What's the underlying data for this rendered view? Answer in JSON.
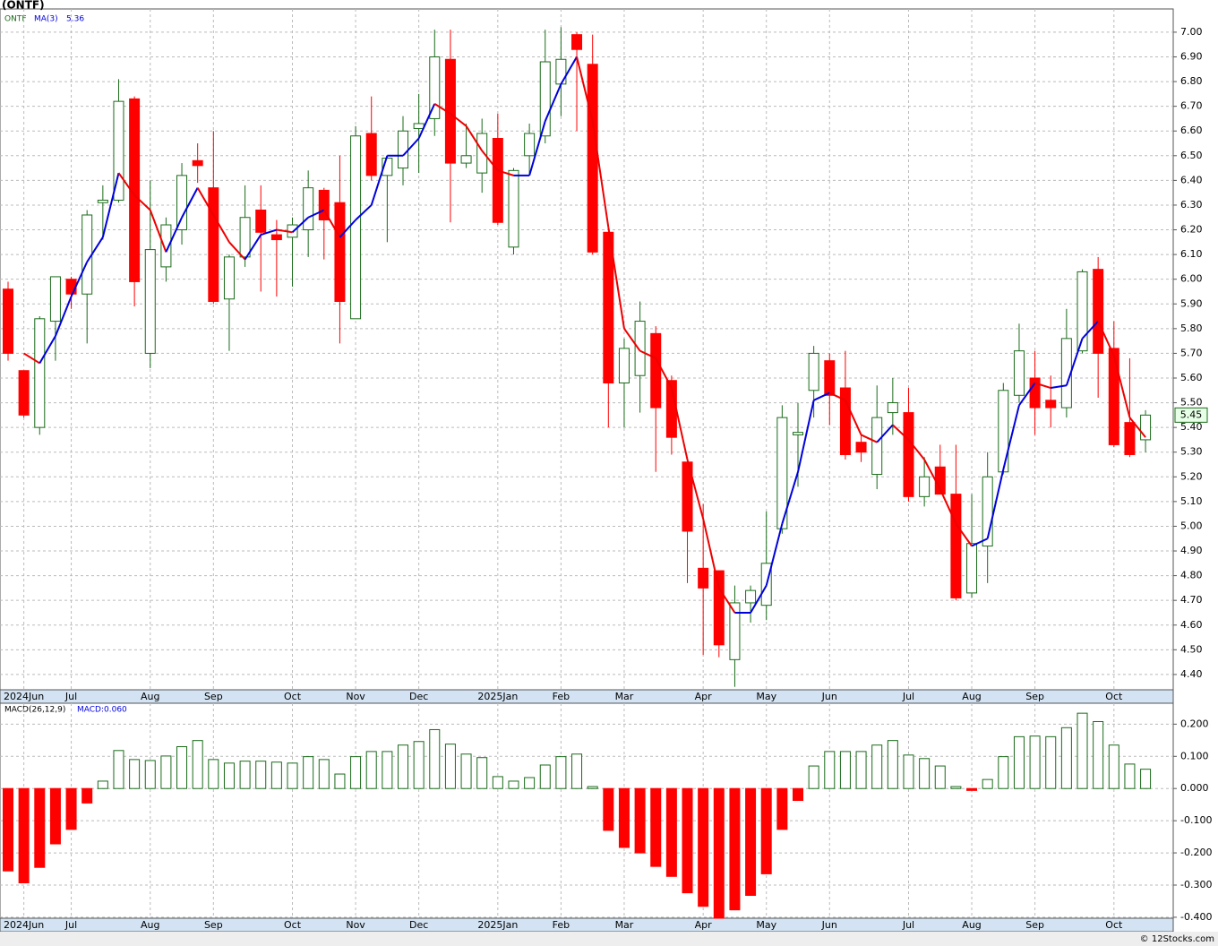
{
  "chart_data": [
    {
      "type": "candlestick",
      "title": "(ONTF)",
      "name": "ONTF",
      "up_color": "#1a6b1a",
      "down_color": "#ff0000",
      "grid": true,
      "categories": [
        null,
        "2024Jun",
        null,
        null,
        "Jul",
        null,
        null,
        null,
        null,
        "Aug",
        null,
        null,
        null,
        "Sep",
        null,
        null,
        null,
        null,
        "Oct",
        null,
        null,
        null,
        "Nov",
        null,
        null,
        null,
        "Dec",
        null,
        null,
        null,
        null,
        "2025Jan",
        null,
        null,
        null,
        "Feb",
        null,
        null,
        null,
        "Mar",
        null,
        null,
        null,
        null,
        "Apr",
        null,
        null,
        null,
        "May",
        null,
        null,
        null,
        "Jun",
        null,
        null,
        null,
        null,
        "Jul",
        null,
        null,
        null,
        "Aug",
        null,
        null,
        null,
        "Sep",
        null,
        null,
        null,
        null,
        "Oct",
        null,
        null
      ],
      "open": [
        5.96,
        5.63,
        5.4,
        5.83,
        6.0,
        5.94,
        6.31,
        6.32,
        6.73,
        5.7,
        6.05,
        6.2,
        6.48,
        6.37,
        5.92,
        6.09,
        6.28,
        6.18,
        6.17,
        6.2,
        6.36,
        6.31,
        5.84,
        6.59,
        6.42,
        6.45,
        6.61,
        6.65,
        6.89,
        6.47,
        6.43,
        6.57,
        6.13,
        6.5,
        6.58,
        6.79,
        6.99,
        6.87,
        6.19,
        5.58,
        5.61,
        5.78,
        5.59,
        5.26,
        4.83,
        4.82,
        4.46,
        4.69,
        4.68,
        4.99,
        5.37,
        5.55,
        5.67,
        5.56,
        5.34,
        5.21,
        5.46,
        5.46,
        5.12,
        5.24,
        5.13,
        4.73,
        4.92,
        5.22,
        5.53,
        5.6,
        5.51,
        5.48,
        5.71,
        6.04,
        5.72,
        5.42,
        5.35
      ],
      "high": [
        5.99,
        5.63,
        5.85,
        6.01,
        6.01,
        6.28,
        6.38,
        6.81,
        6.74,
        6.4,
        6.25,
        6.47,
        6.55,
        6.6,
        6.1,
        6.38,
        6.38,
        6.24,
        6.25,
        6.44,
        6.37,
        6.5,
        6.62,
        6.74,
        6.5,
        6.66,
        6.75,
        7.01,
        7.01,
        6.63,
        6.65,
        6.67,
        6.45,
        6.63,
        7.01,
        7.02,
        7.0,
        6.99,
        6.19,
        5.76,
        5.91,
        5.81,
        5.61,
        5.28,
        5.09,
        4.82,
        4.76,
        4.76,
        5.06,
        5.49,
        5.5,
        5.73,
        5.7,
        5.71,
        5.37,
        5.57,
        5.6,
        5.56,
        5.28,
        5.33,
        5.33,
        5.13,
        5.3,
        5.58,
        5.82,
        5.71,
        5.61,
        5.88,
        6.04,
        6.09,
        5.83,
        5.68,
        5.47
      ],
      "low": [
        5.67,
        5.44,
        5.37,
        5.67,
        5.88,
        5.74,
        6.16,
        6.31,
        5.89,
        5.64,
        5.99,
        6.14,
        6.39,
        5.9,
        5.71,
        6.05,
        5.95,
        5.93,
        5.97,
        6.09,
        6.08,
        5.74,
        5.84,
        6.4,
        6.15,
        6.38,
        6.43,
        6.58,
        6.23,
        6.45,
        6.35,
        6.22,
        6.1,
        6.42,
        6.55,
        6.66,
        6.6,
        6.1,
        5.4,
        5.4,
        5.46,
        5.22,
        5.29,
        4.77,
        4.48,
        4.47,
        4.35,
        4.61,
        4.62,
        4.97,
        5.16,
        5.44,
        5.41,
        5.27,
        5.26,
        5.15,
        5.37,
        5.1,
        5.08,
        5.13,
        4.7,
        4.71,
        4.77,
        5.21,
        5.5,
        5.37,
        5.4,
        5.44,
        5.7,
        5.52,
        5.32,
        5.28,
        5.3
      ],
      "close": [
        5.7,
        5.45,
        5.84,
        6.01,
        5.94,
        6.26,
        6.32,
        6.72,
        5.99,
        6.12,
        6.22,
        6.42,
        6.46,
        5.91,
        6.09,
        6.25,
        6.19,
        6.16,
        6.22,
        6.37,
        6.24,
        5.91,
        6.58,
        6.42,
        6.49,
        6.6,
        6.63,
        6.9,
        6.47,
        6.5,
        6.59,
        6.23,
        6.44,
        6.59,
        6.88,
        6.89,
        6.93,
        6.11,
        5.58,
        5.72,
        5.83,
        5.48,
        5.36,
        4.98,
        4.75,
        4.52,
        4.69,
        4.74,
        4.85,
        5.44,
        5.38,
        5.7,
        5.53,
        5.29,
        5.3,
        5.44,
        5.5,
        5.12,
        5.2,
        5.13,
        4.71,
        4.93,
        5.2,
        5.55,
        5.71,
        5.48,
        5.48,
        5.76,
        6.03,
        5.7,
        5.33,
        5.29,
        5.45
      ],
      "series": [
        {
          "name": "MA(3)",
          "color": "#0000dd",
          "down_color": "#ee0000",
          "values": [
            null,
            5.7,
            5.66,
            5.77,
            5.93,
            6.07,
            6.17,
            6.43,
            6.34,
            6.28,
            6.11,
            6.25,
            6.37,
            6.26,
            6.15,
            6.08,
            6.18,
            6.2,
            6.19,
            6.25,
            6.28,
            6.17,
            6.24,
            6.3,
            6.5,
            6.5,
            6.57,
            6.71,
            6.67,
            6.62,
            6.52,
            6.44,
            6.42,
            6.42,
            6.64,
            6.79,
            6.9,
            6.64,
            6.21,
            5.8,
            5.71,
            5.68,
            5.56,
            5.27,
            5.03,
            4.75,
            4.65,
            4.65,
            4.76,
            5.01,
            5.22,
            5.51,
            5.54,
            5.51,
            5.37,
            5.34,
            5.41,
            5.35,
            5.27,
            5.15,
            5.01,
            4.92,
            4.95,
            5.23,
            5.49,
            5.58,
            5.56,
            5.57,
            5.76,
            5.83,
            5.69,
            5.44,
            5.36
          ]
        }
      ],
      "ylim": [
        4.338,
        7.094
      ],
      "yticks": [
        {
          "value": 4.4,
          "label": "4.40"
        },
        {
          "value": 4.5,
          "label": "4.50"
        },
        {
          "value": 4.6,
          "label": "4.60"
        },
        {
          "value": 4.7,
          "label": "4.70"
        },
        {
          "value": 4.8,
          "label": "4.80"
        },
        {
          "value": 4.9,
          "label": "4.90"
        },
        {
          "value": 5.0,
          "label": "5.00"
        },
        {
          "value": 5.1,
          "label": "5.10"
        },
        {
          "value": 5.2,
          "label": "5.20"
        },
        {
          "value": 5.3,
          "label": "5.30"
        },
        {
          "value": 5.4,
          "label": "5.40"
        },
        {
          "value": 5.5,
          "label": "5.50"
        },
        {
          "value": 5.6,
          "label": "5.60"
        },
        {
          "value": 5.7,
          "label": "5.70"
        },
        {
          "value": 5.8,
          "label": "5.80"
        },
        {
          "value": 5.9,
          "label": "5.90"
        },
        {
          "value": 6.0,
          "label": "6.00"
        },
        {
          "value": 6.1,
          "label": "6.10"
        },
        {
          "value": 6.2,
          "label": "6.20"
        },
        {
          "value": 6.3,
          "label": "6.30"
        },
        {
          "value": 6.4,
          "label": "6.40"
        },
        {
          "value": 6.5,
          "label": "6.50"
        },
        {
          "value": 6.6,
          "label": "6.60"
        },
        {
          "value": 6.7,
          "label": "6.70"
        },
        {
          "value": 6.8,
          "label": "6.80"
        },
        {
          "value": 6.9,
          "label": "6.90"
        },
        {
          "value": 7.0,
          "label": "7.00"
        }
      ]
    },
    {
      "type": "bar",
      "title": "MACD(26,12,9)",
      "readout": "MACD:0.060",
      "up_color": "#1a6b1a",
      "down_color": "#ff0000",
      "grid": true,
      "values": [
        -0.256,
        -0.293,
        -0.245,
        -0.172,
        -0.127,
        -0.045,
        0.023,
        0.118,
        0.09,
        0.087,
        0.101,
        0.13,
        0.149,
        0.09,
        0.079,
        0.085,
        0.085,
        0.082,
        0.079,
        0.099,
        0.09,
        0.045,
        0.099,
        0.115,
        0.115,
        0.135,
        0.146,
        0.183,
        0.138,
        0.107,
        0.096,
        0.037,
        0.023,
        0.034,
        0.073,
        0.099,
        0.107,
        0.006,
        -0.13,
        -0.183,
        -0.2,
        -0.242,
        -0.273,
        -0.324,
        -0.366,
        -0.403,
        -0.377,
        -0.332,
        -0.265,
        -0.127,
        -0.037,
        0.07,
        0.115,
        0.115,
        0.115,
        0.135,
        0.149,
        0.104,
        0.093,
        0.07,
        0.006,
        -0.006,
        0.028,
        0.099,
        0.161,
        0.163,
        0.161,
        0.189,
        0.234,
        0.208,
        0.135,
        0.076,
        0.06
      ],
      "ylim": [
        -0.403,
        0.265
      ],
      "yticks": [
        {
          "value": -0.4,
          "label": "-0.400"
        },
        {
          "value": -0.3,
          "label": "-0.300"
        },
        {
          "value": -0.2,
          "label": "-0.200"
        },
        {
          "value": -0.1,
          "label": "-0.100"
        },
        {
          "value": 0,
          "label": "0.000"
        },
        {
          "value": 0.1,
          "label": "0.100"
        },
        {
          "value": 0.2,
          "label": "0.200"
        }
      ]
    },
    {
      "type": "credit",
      "text": "© 12Stocks.com"
    }
  ]
}
